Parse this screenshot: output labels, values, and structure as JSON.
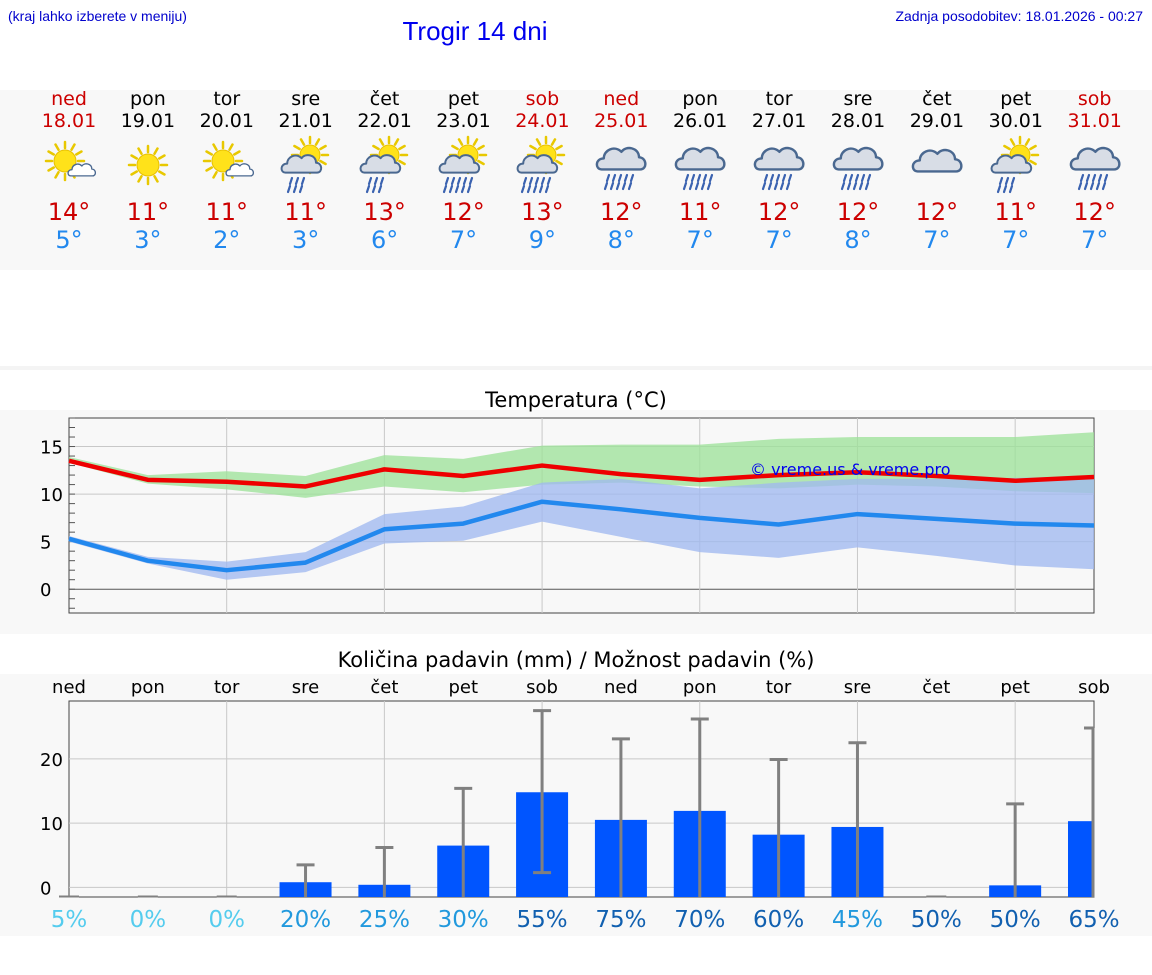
{
  "header": {
    "hint": "(kraj lahko izberete v meniju)",
    "title": "Trogir 14 dni",
    "updated": "Zadnja posodobitev: 18.01.2026 - 00:27"
  },
  "days": [
    {
      "name": "ned",
      "date": "18.01",
      "icon": "sun-cloud-icon",
      "tmax": "14°",
      "tmin": "5°",
      "weekend": true
    },
    {
      "name": "pon",
      "date": "19.01",
      "icon": "sun-icon",
      "tmax": "11°",
      "tmin": "3°",
      "weekend": false
    },
    {
      "name": "tor",
      "date": "20.01",
      "icon": "sun-cloud-icon",
      "tmax": "11°",
      "tmin": "2°",
      "weekend": false
    },
    {
      "name": "sre",
      "date": "21.01",
      "icon": "sun-cloud-rain-icon",
      "tmax": "11°",
      "tmin": "3°",
      "weekend": false
    },
    {
      "name": "čet",
      "date": "22.01",
      "icon": "sun-cloud-rain-icon",
      "tmax": "13°",
      "tmin": "6°",
      "weekend": false
    },
    {
      "name": "pet",
      "date": "23.01",
      "icon": "sun-cloud-heavy-rain-icon",
      "tmax": "12°",
      "tmin": "7°",
      "weekend": false
    },
    {
      "name": "sob",
      "date": "24.01",
      "icon": "sun-cloud-heavy-rain-icon",
      "tmax": "13°",
      "tmin": "9°",
      "weekend": true
    },
    {
      "name": "ned",
      "date": "25.01",
      "icon": "cloud-heavy-rain-icon",
      "tmax": "12°",
      "tmin": "8°",
      "weekend": true
    },
    {
      "name": "pon",
      "date": "26.01",
      "icon": "cloud-heavy-rain-icon",
      "tmax": "11°",
      "tmin": "7°",
      "weekend": false
    },
    {
      "name": "tor",
      "date": "27.01",
      "icon": "cloud-heavy-rain-icon",
      "tmax": "12°",
      "tmin": "7°",
      "weekend": false
    },
    {
      "name": "sre",
      "date": "28.01",
      "icon": "cloud-heavy-rain-icon",
      "tmax": "12°",
      "tmin": "8°",
      "weekend": false
    },
    {
      "name": "čet",
      "date": "29.01",
      "icon": "cloud-icon",
      "tmax": "12°",
      "tmin": "7°",
      "weekend": false
    },
    {
      "name": "pet",
      "date": "30.01",
      "icon": "sun-cloud-rain-icon",
      "tmax": "11°",
      "tmin": "7°",
      "weekend": false
    },
    {
      "name": "sob",
      "date": "31.01",
      "icon": "cloud-heavy-rain-icon",
      "tmax": "12°",
      "tmin": "7°",
      "weekend": true
    }
  ],
  "colors": {
    "max": "#cc0000",
    "min": "#2288ee",
    "bar": "#0055ff"
  },
  "chart_data": [
    {
      "type": "line",
      "title": "Temperatura (°C)",
      "watermark": "© vreme.us & vreme.pro",
      "x": [
        0,
        1,
        2,
        3,
        4,
        5,
        6,
        7,
        8,
        9,
        10,
        11,
        12,
        13
      ],
      "ylim": [
        -2.5,
        18
      ],
      "yticks": [
        0,
        5,
        10,
        15
      ],
      "series": [
        {
          "name": "max",
          "values": [
            13.5,
            11.5,
            11.3,
            10.8,
            12.6,
            11.9,
            13.0,
            12.1,
            11.5,
            12.0,
            12.3,
            11.9,
            11.4,
            11.8
          ],
          "range_low": [
            13.3,
            11.1,
            10.5,
            9.6,
            10.8,
            10.2,
            11.0,
            11.2,
            10.8,
            10.6,
            11.0,
            10.8,
            10.3,
            10.1
          ],
          "range_high": [
            13.9,
            12.0,
            12.4,
            11.9,
            14.1,
            13.7,
            15.1,
            15.2,
            15.2,
            15.8,
            16.0,
            16.0,
            16.0,
            16.5
          ]
        },
        {
          "name": "min",
          "values": [
            5.3,
            3.0,
            2.0,
            2.8,
            6.3,
            6.9,
            9.2,
            8.4,
            7.5,
            6.8,
            7.9,
            7.4,
            6.9,
            6.7
          ],
          "range_low": [
            5.0,
            2.7,
            1.0,
            1.8,
            4.8,
            5.1,
            7.1,
            5.5,
            3.9,
            3.3,
            4.4,
            3.5,
            2.5,
            2.1
          ],
          "range_high": [
            5.6,
            3.4,
            2.9,
            3.9,
            7.9,
            8.7,
            11.2,
            11.6,
            10.6,
            11.2,
            11.6,
            11.6,
            11.7,
            11.9
          ]
        }
      ]
    },
    {
      "type": "bar",
      "title": "Količina padavin (mm) / Možnost padavin (%)",
      "categories": [
        "ned",
        "pon",
        "tor",
        "sre",
        "čet",
        "pet",
        "sob",
        "ned",
        "pon",
        "tor",
        "sre",
        "čet",
        "pet",
        "sob"
      ],
      "values": [
        0,
        0,
        0,
        0.8,
        0.4,
        6.5,
        14.8,
        10.5,
        11.9,
        8.2,
        9.4,
        0,
        0.3,
        10.3
      ],
      "error_low": [
        0,
        0,
        0,
        0,
        0,
        0,
        2.3,
        0,
        0,
        0,
        0,
        0,
        0,
        0
      ],
      "error_high": [
        0,
        0,
        0,
        3.5,
        6.2,
        15.4,
        27.5,
        23.1,
        26.2,
        19.9,
        22.5,
        0,
        13.0,
        24.8
      ],
      "ylim": [
        -1.5,
        29
      ],
      "yticks": [
        0,
        10,
        20
      ],
      "probability": [
        "5%",
        "0%",
        "0%",
        "20%",
        "25%",
        "30%",
        "55%",
        "75%",
        "70%",
        "60%",
        "45%",
        "50%",
        "50%",
        "65%"
      ]
    }
  ]
}
